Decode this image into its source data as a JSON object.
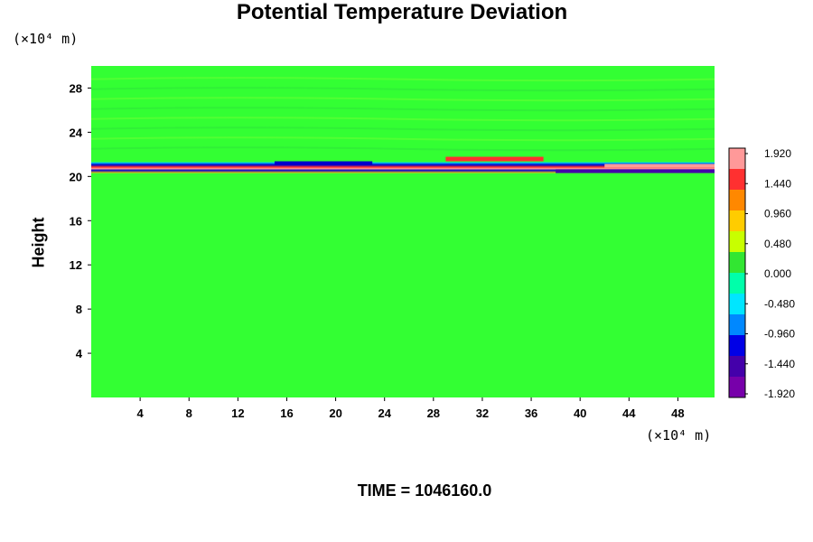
{
  "title": "Potential Temperature Deviation",
  "ylabel": "Height",
  "y_unit": "(×10⁴ m)",
  "x_unit": "(×10⁴ m)",
  "footer": "TIME = 1046160.0",
  "chart_data": {
    "type": "heatmap",
    "title": "Potential Temperature Deviation",
    "xlabel": "",
    "ylabel": "Height",
    "xlim": [
      0,
      51
    ],
    "ylim": [
      0,
      30
    ],
    "x_ticks": [
      4,
      8,
      12,
      16,
      20,
      24,
      28,
      32,
      36,
      40,
      44,
      48
    ],
    "y_ticks": [
      4,
      8,
      12,
      16,
      20,
      24,
      28
    ],
    "colorbar": {
      "min": -1.92,
      "max": 1.92,
      "labels": [
        "1.920",
        "1.440",
        "0.960",
        "0.480",
        "0.000",
        "-0.480",
        "-0.960",
        "-1.440",
        "-1.920"
      ],
      "colors": [
        "#ff9999",
        "#ff3030",
        "#ff8800",
        "#ffcc00",
        "#c8ff00",
        "#32e632",
        "#00ffaa",
        "#00e6ff",
        "#0088ff",
        "#0000e6",
        "#4400aa",
        "#7700aa"
      ]
    },
    "background_color": "#33ff33",
    "features": [
      {
        "type": "band",
        "y": 20.8,
        "x_range": [
          0,
          51
        ],
        "value_range": [
          -1.92,
          1.92
        ]
      }
    ]
  }
}
